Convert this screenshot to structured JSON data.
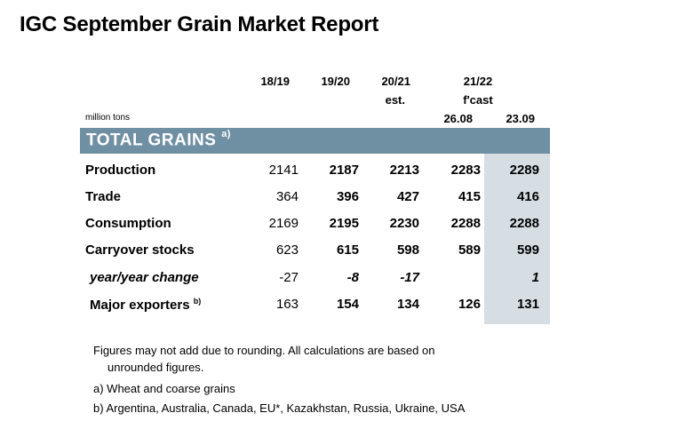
{
  "title": "IGC September Grain Market Report",
  "columns": {
    "c1": "18/19",
    "c2": "19/20",
    "c3_line1": "20/21",
    "c3_line2": "est.",
    "c4_group_line1": "21/22",
    "c4_group_line2": "f'cast",
    "c4a": "26.08",
    "c4b": "23.09"
  },
  "unit": "million tons",
  "banner": {
    "label": "TOTAL GRAINS",
    "footnote_mark": "a)",
    "color": "#6f8fa3"
  },
  "highlight_color": "#d6dee4",
  "rows": [
    {
      "label": "Production",
      "note": "",
      "values": [
        "2141",
        "2187",
        "2213",
        "2283",
        "2289"
      ]
    },
    {
      "label": "Trade",
      "note": "",
      "values": [
        "364",
        "396",
        "427",
        "415",
        "416"
      ]
    },
    {
      "label": "Consumption",
      "note": "",
      "values": [
        "2169",
        "2195",
        "2230",
        "2288",
        "2288"
      ]
    },
    {
      "label": "Carryover stocks",
      "note": "",
      "values": [
        "623",
        "615",
        "598",
        "589",
        "599"
      ]
    },
    {
      "label": "year/year change",
      "note": "",
      "values": [
        "-27",
        "-8",
        "-17",
        "",
        "1"
      ]
    },
    {
      "label": "Major exporters",
      "note": "b)",
      "values": [
        "163",
        "154",
        "134",
        "126",
        "131"
      ]
    }
  ],
  "notes": {
    "line1": "Figures may not add due to rounding. All calculations are based on",
    "line2": "unrounded figures.",
    "line3": "a) Wheat and coarse grains",
    "line4": "b) Argentina, Australia, Canada, EU*, Kazakhstan, Russia, Ukraine, USA"
  }
}
